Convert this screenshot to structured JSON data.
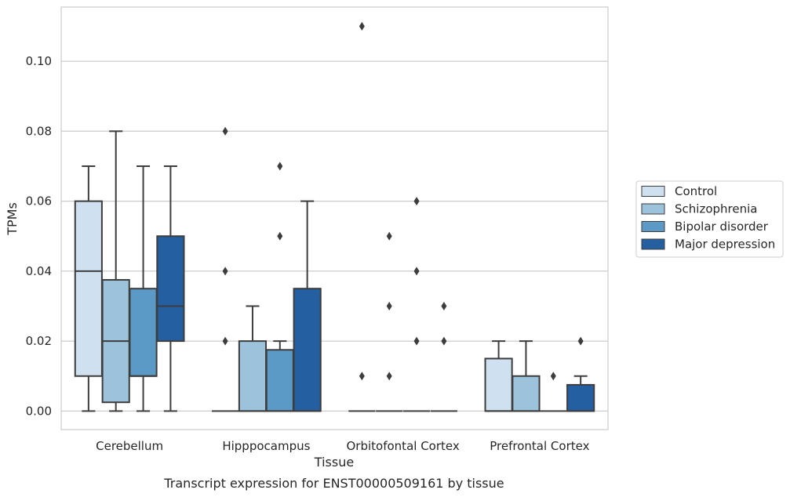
{
  "chart_data": {
    "type": "boxplot",
    "title": "Transcript expression for ENST00000509161 by tissue",
    "xlabel": "Tissue",
    "ylabel": "TPMs",
    "ylim": [
      -0.0053,
      0.1155
    ],
    "yticks": [
      "0.00",
      "0.02",
      "0.04",
      "0.06",
      "0.08",
      "0.10"
    ],
    "ytick_values": [
      0,
      0.02,
      0.04,
      0.06,
      0.08,
      0.1
    ],
    "grid": "horizontal",
    "legend_position": "right",
    "categories": [
      "Cerebellum",
      "Hipppocampus",
      "Orbitofontal Cortex",
      "Prefrontal Cortex"
    ],
    "series": [
      {
        "name": "Control",
        "color": "#cfe0f1",
        "boxes": [
          {
            "q1": 0.01,
            "median": 0.04,
            "q3": 0.06,
            "whislo": 0.0,
            "whishi": 0.07,
            "fliers": []
          },
          {
            "q1": 0.0,
            "median": 0.0,
            "q3": 0.0,
            "whislo": 0.0,
            "whishi": 0.0,
            "fliers": [
              0.02,
              0.04,
              0.08
            ]
          },
          {
            "q1": 0.0,
            "median": 0.0,
            "q3": 0.0,
            "whislo": 0.0,
            "whishi": 0.0,
            "fliers": [
              0.01,
              0.11
            ]
          },
          {
            "q1": 0.0,
            "median": 0.0,
            "q3": 0.015,
            "whislo": 0.0,
            "whishi": 0.02,
            "fliers": []
          }
        ]
      },
      {
        "name": "Schizophrenia",
        "color": "#9dc3dc",
        "boxes": [
          {
            "q1": 0.0025,
            "median": 0.02,
            "q3": 0.0375,
            "whislo": 0.0,
            "whishi": 0.08,
            "fliers": []
          },
          {
            "q1": 0.0,
            "median": 0.0,
            "q3": 0.02,
            "whislo": 0.0,
            "whishi": 0.03,
            "fliers": []
          },
          {
            "q1": 0.0,
            "median": 0.0,
            "q3": 0.0,
            "whislo": 0.0,
            "whishi": 0.0,
            "fliers": [
              0.01,
              0.03,
              0.05
            ]
          },
          {
            "q1": 0.0,
            "median": 0.0,
            "q3": 0.01,
            "whislo": 0.0,
            "whishi": 0.02,
            "fliers": []
          }
        ]
      },
      {
        "name": "Bipolar disorder",
        "color": "#5b9ac6",
        "boxes": [
          {
            "q1": 0.01,
            "median": 0.01,
            "q3": 0.035,
            "whislo": 0.0,
            "whishi": 0.07,
            "fliers": []
          },
          {
            "q1": 0.0,
            "median": 0.0,
            "q3": 0.0175,
            "whislo": 0.0,
            "whishi": 0.02,
            "fliers": [
              0.05,
              0.07
            ]
          },
          {
            "q1": 0.0,
            "median": 0.0,
            "q3": 0.0,
            "whislo": 0.0,
            "whishi": 0.0,
            "fliers": [
              0.02,
              0.04,
              0.06
            ]
          },
          {
            "q1": 0.0,
            "median": 0.0,
            "q3": 0.0,
            "whislo": 0.0,
            "whishi": 0.0,
            "fliers": [
              0.01
            ]
          }
        ]
      },
      {
        "name": "Major depression",
        "color": "#2460a1",
        "boxes": [
          {
            "q1": 0.02,
            "median": 0.03,
            "q3": 0.05,
            "whislo": 0.0,
            "whishi": 0.07,
            "fliers": []
          },
          {
            "q1": 0.0,
            "median": 0.0,
            "q3": 0.035,
            "whislo": 0.0,
            "whishi": 0.06,
            "fliers": []
          },
          {
            "q1": 0.0,
            "median": 0.0,
            "q3": 0.0,
            "whislo": 0.0,
            "whishi": 0.0,
            "fliers": [
              0.02,
              0.03
            ]
          },
          {
            "q1": 0.0,
            "median": 0.0,
            "q3": 0.0075,
            "whislo": 0.0,
            "whishi": 0.01,
            "fliers": [
              0.02
            ]
          }
        ]
      }
    ]
  }
}
